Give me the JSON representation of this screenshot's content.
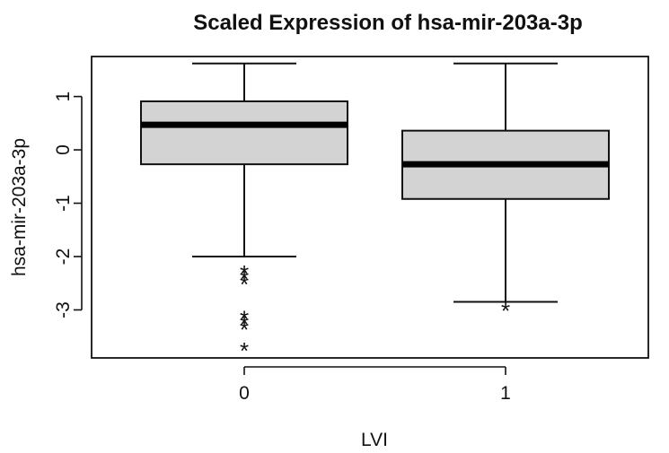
{
  "chart_data": {
    "type": "boxplot",
    "title": "Scaled Expression of hsa-mir-203a-3p",
    "xlabel": "LVI",
    "ylabel": "hsa-mir-203a-3p",
    "categories": [
      "0",
      "1"
    ],
    "y_ticks": [
      "1",
      "0",
      "-1",
      "-2",
      "-3"
    ],
    "ylim": [
      -3.9,
      1.75
    ],
    "boxes": [
      {
        "category": "0",
        "whisker_low": -2.0,
        "q1": -0.27,
        "median": 0.47,
        "q3": 0.91,
        "whisker_high": 1.62,
        "outliers": [
          -2.25,
          -2.35,
          -2.45,
          -3.1,
          -3.2,
          -3.3,
          -3.7
        ]
      },
      {
        "category": "1",
        "whisker_low": -2.85,
        "q1": -0.92,
        "median": -0.27,
        "q3": 0.36,
        "whisker_high": 1.62,
        "outliers": [
          -2.95
        ]
      }
    ],
    "box_fill": "#d3d3d3",
    "outlier_marker": "*",
    "grid": false,
    "legend": "none"
  }
}
